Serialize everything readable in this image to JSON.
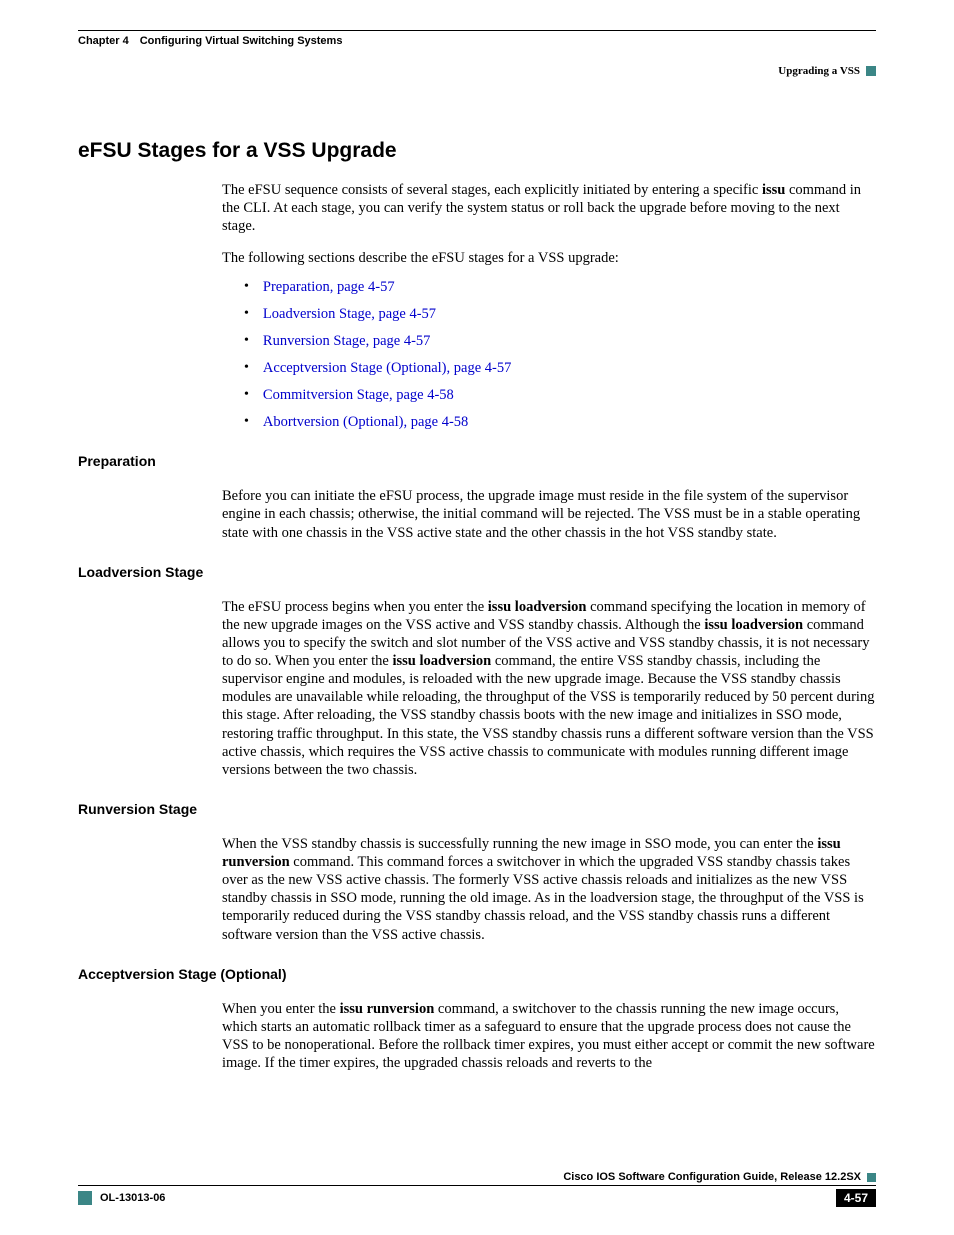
{
  "header": {
    "chapter": "Chapter 4 Configuring Virtual Switching Systems",
    "section": "Upgrading a VSS"
  },
  "h1": "eFSU Stages for a VSS Upgrade",
  "intro_a": "The eFSU sequence consists of several stages, each explicitly initiated by entering a specific ",
  "intro_b": "issu",
  "intro_c": " command in the CLI. At each stage, you can verify the system status or roll back the upgrade before moving to the next stage.",
  "intro2": "The following sections describe the eFSU stages for a VSS upgrade:",
  "bullets": [
    "Preparation, page 4-57",
    "Loadversion Stage, page 4-57",
    "Runversion Stage, page 4-57",
    "Acceptversion Stage (Optional), page 4-57",
    "Commitversion Stage, page 4-58",
    "Abortversion (Optional), page 4-58"
  ],
  "sections": {
    "prep_h": "Preparation",
    "prep_p": "Before you can initiate the eFSU process, the upgrade image must reside in the file system of the supervisor engine in each chassis; otherwise, the initial command will be rejected. The VSS must be in a stable operating state with one chassis in the VSS active state and the other chassis in the hot VSS standby state.",
    "load_h": "Loadversion Stage",
    "load_a": "The eFSU process begins when you enter the ",
    "load_b": "issu loadversion",
    "load_c": " command specifying the location in memory of the new upgrade images on the VSS active and VSS standby chassis. Although the ",
    "load_d": "issu loadversion",
    "load_e": " command allows you to specify the switch and slot number of the VSS active and VSS standby chassis, it is not necessary to do so. When you enter the ",
    "load_f": "issu loadversion",
    "load_g": " command, the entire VSS standby chassis, including the supervisor engine and modules, is reloaded with the new upgrade image. Because the VSS standby chassis modules are unavailable while reloading, the throughput of the VSS is temporarily reduced by 50 percent during this stage. After reloading, the VSS standby chassis boots with the new image and initializes in SSO mode, restoring traffic throughput. In this state, the VSS standby chassis runs a different software version than the VSS active chassis, which requires the VSS active chassis to communicate with modules running different image versions between the two chassis.",
    "run_h": "Runversion Stage",
    "run_a": "When the VSS standby chassis is successfully running the new image in SSO mode, you can enter the ",
    "run_b": "issu runversion",
    "run_c": " command. This command forces a switchover in which the upgraded VSS standby chassis takes over as the new VSS active chassis. The formerly VSS active chassis reloads and initializes as the new VSS standby chassis in SSO mode, running the old image. As in the loadversion stage, the throughput of the VSS is temporarily reduced during the VSS standby chassis reload, and the VSS standby chassis runs a different software version than the VSS active chassis.",
    "acc_h": "Acceptversion Stage (Optional)",
    "acc_a": "When you enter the ",
    "acc_b": "issu runversion",
    "acc_c": " command, a switchover to the chassis running the new image occurs, which starts an automatic rollback timer as a safeguard to ensure that the upgrade process does not cause the VSS to be nonoperational. Before the rollback timer expires, you must either accept or commit the new software image. If the timer expires, the upgraded chassis reloads and reverts to the"
  },
  "footer": {
    "guide": "Cisco IOS Software Configuration Guide, Release 12.2SX",
    "docnum": "OL-13013-06",
    "page": "4-57"
  }
}
